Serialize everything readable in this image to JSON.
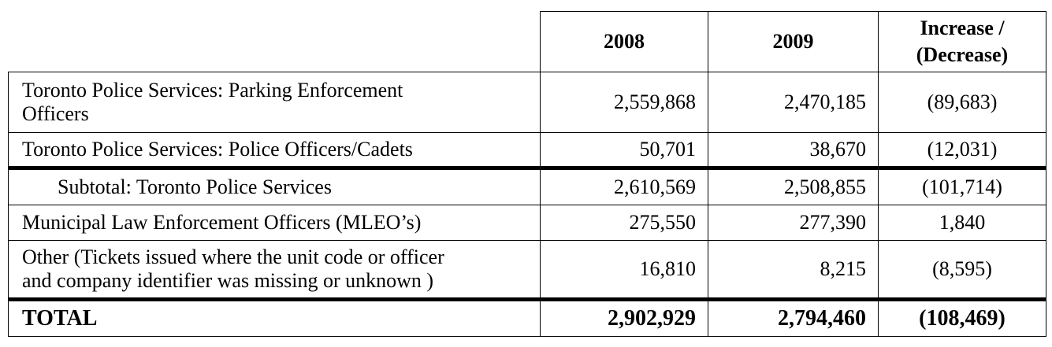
{
  "table": {
    "headers": {
      "col_2008": "2008",
      "col_2009": "2009",
      "col_change_line1": "Increase /",
      "col_change_line2": "(Decrease)"
    },
    "rows": [
      {
        "label_line1": "Toronto Police Services:  Parking Enforcement",
        "label_line2": "Officers",
        "v2008": "2,559,868",
        "v2009": "2,470,185",
        "change": "(89,683)"
      },
      {
        "label": "Toronto Police Services:  Police Officers/Cadets",
        "v2008": "50,701",
        "v2009": "38,670",
        "change": "(12,031)"
      },
      {
        "label": "Subtotal:  Toronto Police Services",
        "v2008": "2,610,569",
        "v2009": "2,508,855",
        "change": "(101,714)"
      },
      {
        "label": "Municipal Law Enforcement Officers (MLEO’s)",
        "v2008": "275,550",
        "v2009": "277,390",
        "change": "1,840"
      },
      {
        "label_line1": "Other (Tickets issued where the unit code or officer",
        "label_line2": "and company identifier was missing or unknown )",
        "v2008": "16,810",
        "v2009": "8,215",
        "change": "(8,595)"
      }
    ],
    "total": {
      "label": "TOTAL",
      "v2008": "2,902,929",
      "v2009": "2,794,460",
      "change": "(108,469)"
    }
  }
}
